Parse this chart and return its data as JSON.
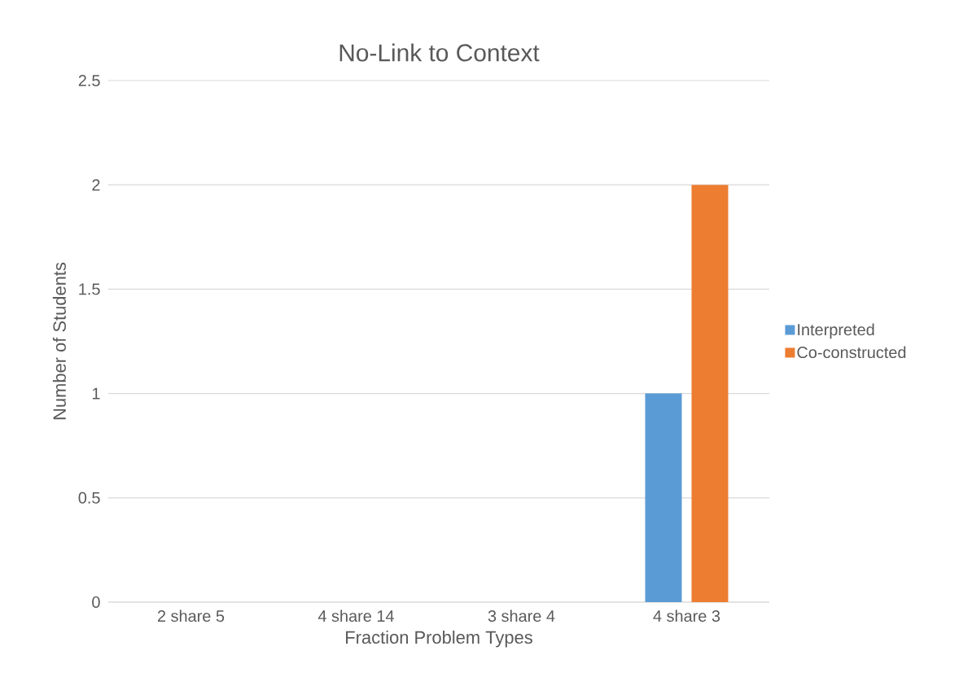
{
  "chart_data": {
    "type": "bar",
    "title": "No-Link to Context",
    "xlabel": "Fraction Problem Types",
    "ylabel": "Number of Students",
    "categories": [
      "2 share 5",
      "4 share 14",
      "3 share 4",
      "4 share 3"
    ],
    "series": [
      {
        "name": "Interpreted",
        "color": "#5b9bd5",
        "values": [
          0,
          0,
          0,
          1
        ]
      },
      {
        "name": "Co-constructed",
        "color": "#ed7d31",
        "values": [
          0,
          0,
          0,
          2
        ]
      }
    ],
    "ylim": [
      0,
      2.5
    ],
    "yticks": [
      0,
      0.5,
      1,
      1.5,
      2,
      2.5
    ],
    "grid": "y",
    "legend": "right"
  }
}
